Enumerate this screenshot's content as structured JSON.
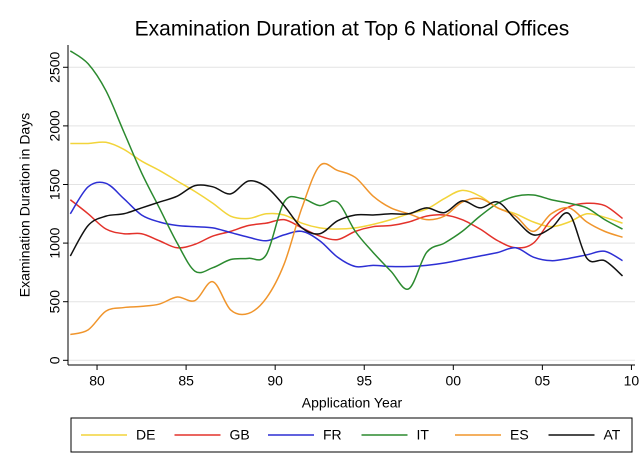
{
  "chart_data": {
    "type": "line",
    "title": "Examination Duration at Top 6 National Offices",
    "x_label": "Application Year",
    "y_label": "Examination Duration in Days",
    "x": [
      1978.5,
      1979.5,
      1980.5,
      1981.5,
      1982.5,
      1983.5,
      1984.5,
      1985.5,
      1986.5,
      1987.5,
      1988.5,
      1989.5,
      1990.5,
      1991.5,
      1992.5,
      1993.5,
      1994.5,
      1995.5,
      1996.5,
      1997.5,
      1998.5,
      1999.5,
      2000.5,
      2001.5,
      2002.5,
      2003.5,
      2004.5,
      2005.5,
      2006.5,
      2007.5,
      2008.5,
      2009.5
    ],
    "series": [
      {
        "name": "DE",
        "color": "#f2d43a",
        "values": [
          1850,
          1850,
          1860,
          1800,
          1700,
          1620,
          1530,
          1440,
          1340,
          1230,
          1210,
          1250,
          1240,
          1170,
          1130,
          1120,
          1130,
          1160,
          1200,
          1250,
          1290,
          1380,
          1450,
          1400,
          1300,
          1250,
          1180,
          1140,
          1180,
          1250,
          1220,
          1170
        ]
      },
      {
        "name": "GB",
        "color": "#e3322b",
        "values": [
          1370,
          1250,
          1120,
          1080,
          1080,
          1020,
          960,
          990,
          1060,
          1100,
          1150,
          1170,
          1200,
          1130,
          1060,
          1030,
          1100,
          1140,
          1150,
          1180,
          1230,
          1240,
          1200,
          1120,
          1020,
          960,
          1000,
          1200,
          1310,
          1340,
          1320,
          1210
        ]
      },
      {
        "name": "FR",
        "color": "#2d2fd4",
        "values": [
          1250,
          1480,
          1510,
          1380,
          1240,
          1180,
          1150,
          1140,
          1130,
          1090,
          1050,
          1020,
          1070,
          1100,
          1020,
          880,
          800,
          810,
          800,
          800,
          810,
          830,
          860,
          890,
          920,
          960,
          880,
          850,
          870,
          900,
          930,
          850
        ]
      },
      {
        "name": "IT",
        "color": "#2b8a2f",
        "values": [
          2640,
          2530,
          2300,
          1950,
          1600,
          1300,
          1000,
          760,
          790,
          860,
          870,
          900,
          1350,
          1380,
          1320,
          1350,
          1100,
          920,
          760,
          610,
          920,
          1000,
          1100,
          1230,
          1340,
          1400,
          1410,
          1370,
          1340,
          1300,
          1200,
          1120
        ]
      },
      {
        "name": "ES",
        "color": "#f0952c",
        "values": [
          220,
          260,
          420,
          450,
          460,
          480,
          540,
          510,
          670,
          430,
          400,
          530,
          820,
          1300,
          1660,
          1620,
          1560,
          1400,
          1300,
          1250,
          1200,
          1230,
          1350,
          1380,
          1300,
          1230,
          1100,
          1250,
          1300,
          1180,
          1100,
          1050
        ]
      },
      {
        "name": "AT",
        "color": "#111111",
        "values": [
          890,
          1150,
          1230,
          1250,
          1300,
          1350,
          1400,
          1490,
          1480,
          1420,
          1530,
          1480,
          1320,
          1130,
          1080,
          1190,
          1240,
          1240,
          1250,
          1250,
          1300,
          1260,
          1360,
          1300,
          1350,
          1200,
          1070,
          1130,
          1250,
          870,
          850,
          720
        ]
      }
    ],
    "xlim": [
      1978.37,
      2010.2
    ],
    "xticks": [
      {
        "value": 1980,
        "label": "80"
      },
      {
        "value": 1985,
        "label": "85"
      },
      {
        "value": 1990,
        "label": "90"
      },
      {
        "value": 1995,
        "label": "95"
      },
      {
        "value": 2000,
        "label": "00"
      },
      {
        "value": 2005,
        "label": "05"
      },
      {
        "value": 2010,
        "label": "10"
      }
    ],
    "ylim": [
      -40,
      2690
    ],
    "yticks": [
      0,
      500,
      1000,
      1500,
      2000,
      2500
    ],
    "grid": true,
    "legend": "bottom"
  }
}
